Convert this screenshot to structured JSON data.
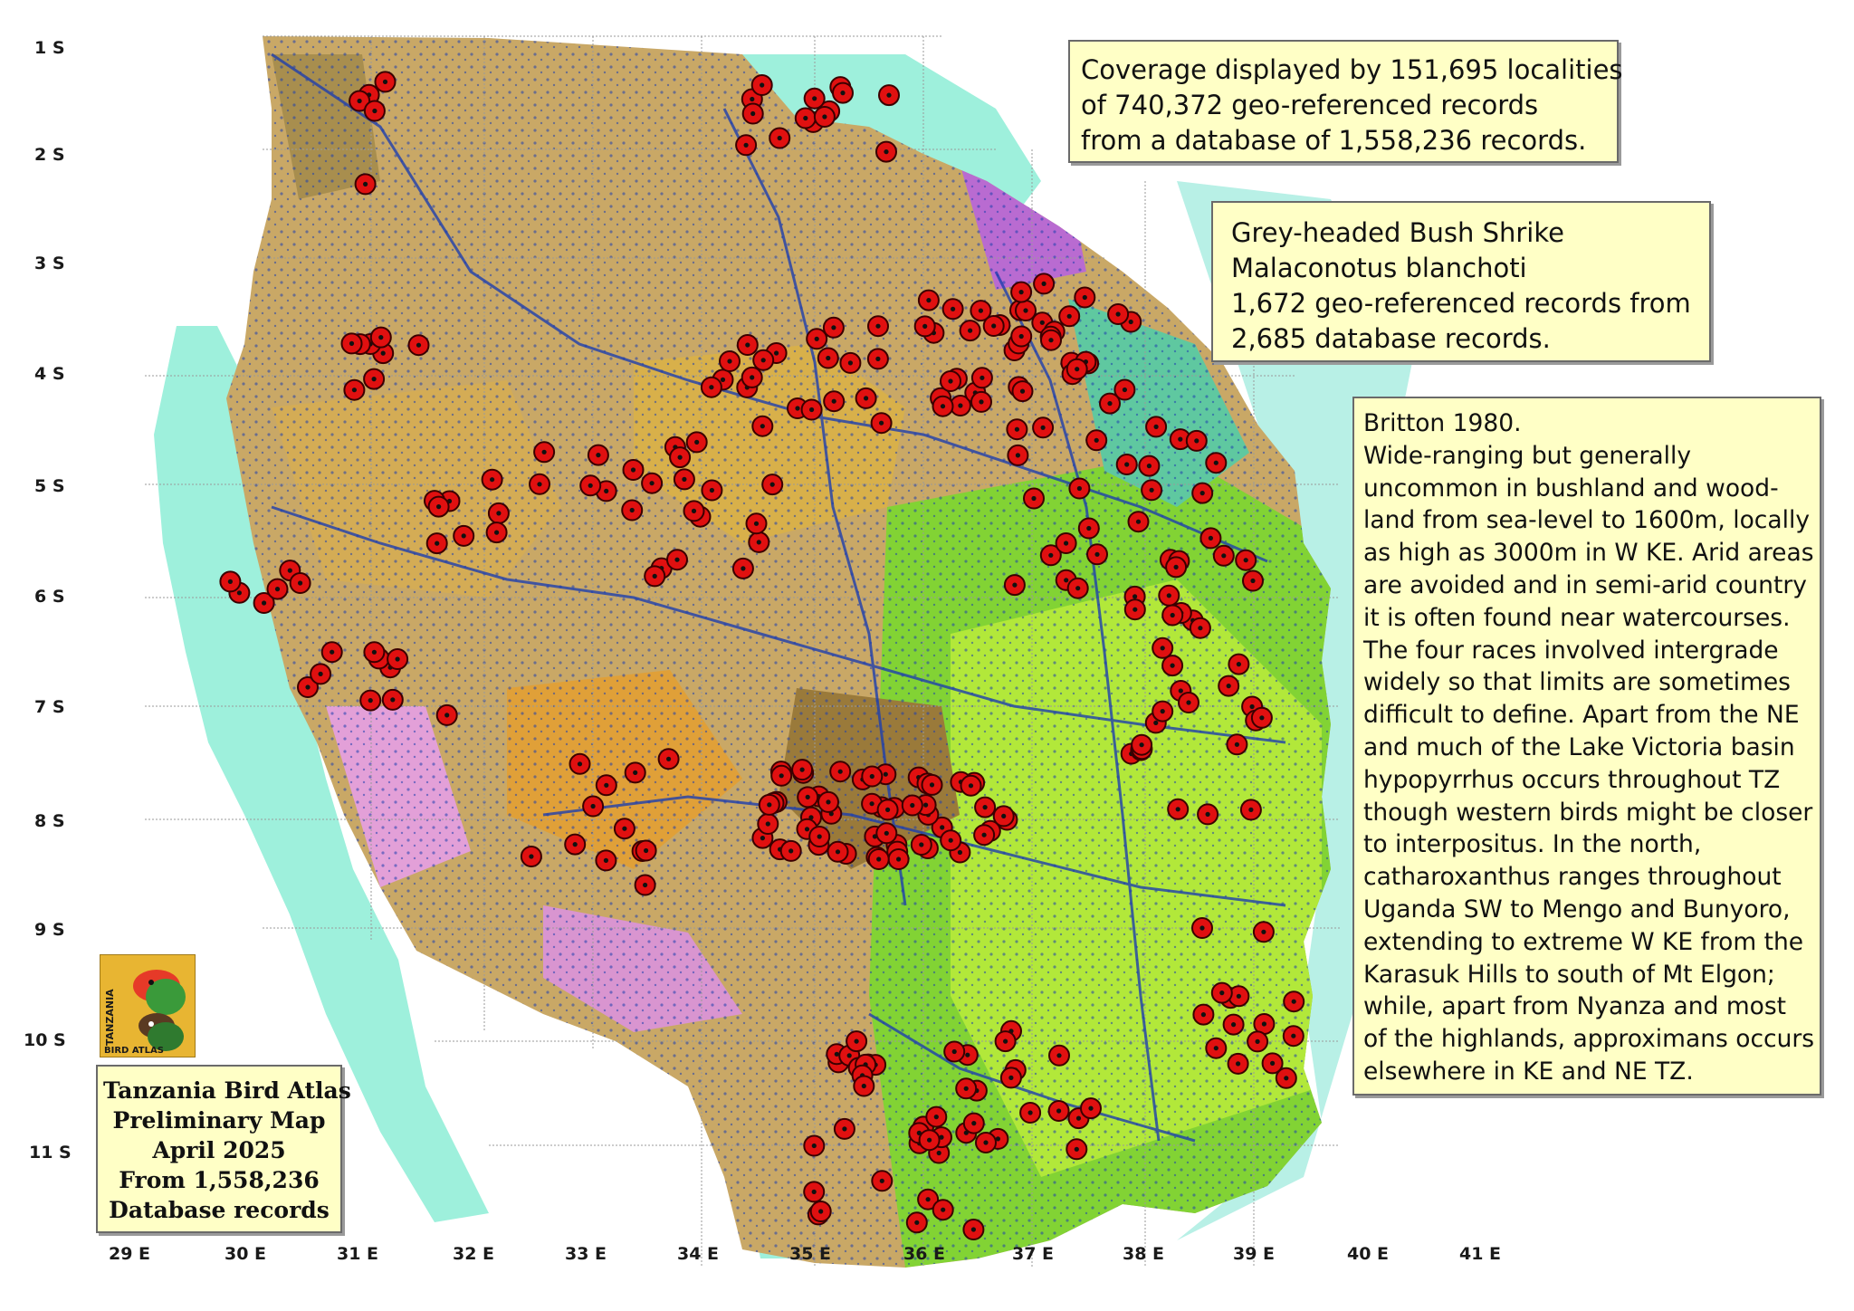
{
  "latitude_labels": [
    "1 S",
    "2 S",
    "3 S",
    "4 S",
    "5 S",
    "6 S",
    "7 S",
    "8 S",
    "9 S",
    "10 S",
    "11 S"
  ],
  "longitude_labels": [
    "29 E",
    "30 E",
    "31 E",
    "32 E",
    "33 E",
    "34 E",
    "35 E",
    "36 E",
    "37 E",
    "38 E",
    "39 E",
    "40 E",
    "41 E"
  ],
  "coverage_box": {
    "lines": [
      "Coverage displayed by 151,695 localities",
      "of 740,372 geo-referenced records",
      "from a database of 1,558,236 records."
    ]
  },
  "species_box": {
    "lines": [
      "Grey-headed Bush Shrike",
      "Malaconotus blanchoti",
      "1,672 geo-referenced records from",
      "2,685 database records."
    ]
  },
  "notes_box": {
    "lines": [
      "Britton 1980.",
      "Wide-ranging but generally",
      "uncommon in bushland and wood-",
      "land from sea-level to 1600m, locally",
      "as high as 3000m in W KE. Arid areas",
      "are avoided and in semi-arid country",
      "it is often found near watercourses.",
      "The four races involved intergrade",
      "widely so that limits are sometimes",
      "difficult to define. Apart from the NE",
      "and much of the Lake Victoria basin",
      "hypopyrrhus occurs throughout TZ",
      "though western birds might be closer",
      "to interpositus. In the north,",
      "catharoxanthus ranges throughout",
      "Uganda SW to Mengo and Bunyoro,",
      "extending to extreme W KE from the",
      "Karasuk Hills to south of Mt Elgon;",
      "while, apart from Nyanza and most",
      "of the highlands, approximans occurs",
      "elsewhere in KE and NE TZ."
    ]
  },
  "legend_box": {
    "lines": [
      "Tanzania Bird Atlas",
      "Preliminary Map",
      "April 2025",
      "From 1,558,236",
      "Database records"
    ]
  },
  "logo": {
    "text_top": "TANZANIA",
    "text_bottom": "BIRD ATLAS",
    "icon": "lovebird-logo-icon"
  },
  "colors": {
    "record_marker": "#e01010",
    "locality_dot": "#1e3fae",
    "lake_water": "#9ef0dc",
    "box_background": "#ffffc6"
  }
}
